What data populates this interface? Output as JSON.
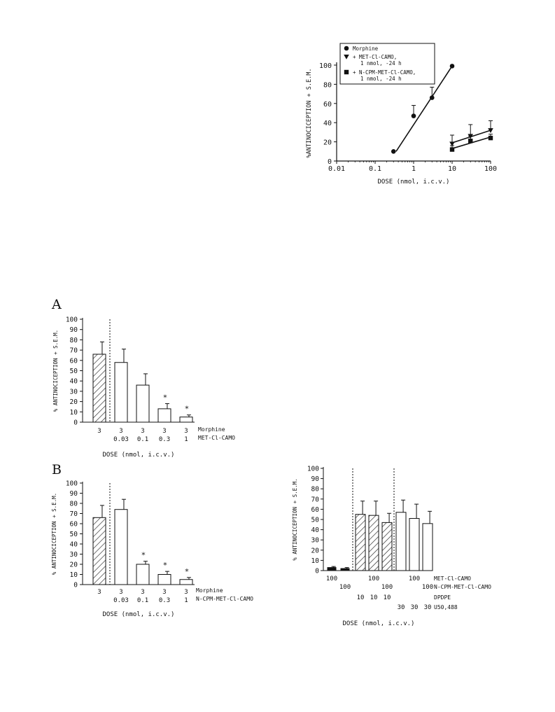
{
  "chart_data": [
    {
      "id": "dose-response",
      "type": "scatter",
      "xscale": "log",
      "xlim": [
        0.01,
        100
      ],
      "ylim": [
        0,
        100
      ],
      "xlabel": "DOSE (nmol, i.c.v.)",
      "ylabel": "%ANTINOCICEPTION + S.E.M.",
      "xticks": [
        "0.01",
        "0.1",
        "1",
        "10",
        "100"
      ],
      "yticks": [
        "0",
        "20",
        "40",
        "60",
        "80",
        "100"
      ],
      "legend_position": "top",
      "legend": [
        {
          "marker": "circle",
          "text": "Morphine"
        },
        {
          "marker": "triangle-down",
          "text": "+ MET-Cl-CAMO,",
          "text2": "1 nmol, -24 h"
        },
        {
          "marker": "square",
          "text": "+ N-CPM-MET-Cl-CAMO,",
          "text2": "1 nmol, -24 h"
        }
      ],
      "series": [
        {
          "marker": "circle",
          "line": [
            [
              0.35,
              10
            ],
            [
              10,
              99
            ]
          ],
          "points": [
            {
              "x": 0.3,
              "y": 10,
              "err": 0
            },
            {
              "x": 1,
              "y": 47,
              "err": 11
            },
            {
              "x": 3,
              "y": 66,
              "err": 11
            },
            {
              "x": 10,
              "y": 99,
              "err": 0
            }
          ]
        },
        {
          "marker": "triangle-down",
          "line": [
            [
              10,
              19
            ],
            [
              100,
              32
            ]
          ],
          "points": [
            {
              "x": 10,
              "y": 18,
              "err": 9
            },
            {
              "x": 30,
              "y": 26,
              "err": 12
            },
            {
              "x": 100,
              "y": 32,
              "err": 10
            }
          ]
        },
        {
          "marker": "square",
          "line": [
            [
              10,
              13
            ],
            [
              100,
              25
            ]
          ],
          "points": [
            {
              "x": 10,
              "y": 12,
              "err": 4
            },
            {
              "x": 30,
              "y": 21,
              "err": 5
            },
            {
              "x": 100,
              "y": 24,
              "err": 4
            }
          ]
        }
      ]
    },
    {
      "id": "panel-a",
      "type": "bar",
      "panel_label": "A",
      "ylim": [
        0,
        100
      ],
      "yticks": [
        "0",
        "10",
        "20",
        "30",
        "40",
        "50",
        "60",
        "70",
        "80",
        "90",
        "100"
      ],
      "ylabel": "% ANTINOCICEPTION + S.E.M.",
      "xlabel": "DOSE (nmol, i.c.v.)",
      "row_labels": [
        "Morphine",
        "MET-Cl-CAMO"
      ],
      "bars": [
        {
          "value": 66,
          "err": 12,
          "fill": "hatched",
          "labels": [
            "3",
            ""
          ],
          "star": false
        },
        {
          "value": 58,
          "err": 13,
          "fill": "open",
          "labels": [
            "3",
            "0.03"
          ],
          "star": false
        },
        {
          "value": 36,
          "err": 11,
          "fill": "open",
          "labels": [
            "3",
            "0.1"
          ],
          "star": false
        },
        {
          "value": 13,
          "err": 5,
          "fill": "open",
          "labels": [
            "3",
            "0.3"
          ],
          "star": true
        },
        {
          "value": 5,
          "err": 2,
          "fill": "open",
          "labels": [
            "3",
            "1"
          ],
          "star": true
        }
      ],
      "separator_after": 1
    },
    {
      "id": "panel-b",
      "type": "bar",
      "panel_label": "B",
      "ylim": [
        0,
        100
      ],
      "yticks": [
        "0",
        "10",
        "20",
        "30",
        "40",
        "50",
        "60",
        "70",
        "80",
        "90",
        "100"
      ],
      "ylabel": "% ANTINOCICEPTION + S.E.M.",
      "xlabel": "DOSE (nmol, i.c.v.)",
      "row_labels": [
        "Morphine",
        "N-CPM-MET-Cl-CAMO"
      ],
      "bars": [
        {
          "value": 66,
          "err": 12,
          "fill": "hatched",
          "labels": [
            "3",
            ""
          ],
          "star": false
        },
        {
          "value": 74,
          "err": 10,
          "fill": "open",
          "labels": [
            "3",
            "0.03"
          ],
          "star": false
        },
        {
          "value": 20,
          "err": 3,
          "fill": "open",
          "labels": [
            "3",
            "0.1"
          ],
          "star": true
        },
        {
          "value": 10,
          "err": 3,
          "fill": "open",
          "labels": [
            "3",
            "0.3"
          ],
          "star": true
        },
        {
          "value": 5,
          "err": 2,
          "fill": "open",
          "labels": [
            "3",
            "1"
          ],
          "star": true
        }
      ],
      "separator_after": 1
    },
    {
      "id": "panel-c",
      "type": "bar",
      "ylim": [
        0,
        100
      ],
      "yticks": [
        "0",
        "10",
        "20",
        "30",
        "40",
        "50",
        "60",
        "70",
        "80",
        "90",
        "100"
      ],
      "ylabel": "% ANTINOCICEPTION + S.E.M.",
      "xlabel": "DOSE (nmol, i.c.v.)",
      "row_labels": [
        "MET-Cl-CAMO",
        "N-CPM-MET-Cl-CAMO",
        "DPDPE",
        "U50,488"
      ],
      "bars": [
        {
          "value": 3,
          "err": 1,
          "fill": "solid",
          "labels": [
            "100",
            "",
            "",
            ""
          ]
        },
        {
          "value": 2,
          "err": 1,
          "fill": "solid",
          "labels": [
            "",
            "100",
            "",
            ""
          ]
        },
        {
          "value": 55,
          "err": 13,
          "fill": "hatched",
          "labels": [
            "",
            "",
            "10",
            ""
          ]
        },
        {
          "value": 54,
          "err": 14,
          "fill": "hatched",
          "labels": [
            "100",
            "",
            "10",
            ""
          ]
        },
        {
          "value": 47,
          "err": 9,
          "fill": "hatched",
          "labels": [
            "",
            "100",
            "10",
            ""
          ]
        },
        {
          "value": 57,
          "err": 12,
          "fill": "open",
          "labels": [
            "",
            "",
            "",
            "30"
          ]
        },
        {
          "value": 51,
          "err": 14,
          "fill": "open",
          "labels": [
            "100",
            "",
            "",
            "30"
          ]
        },
        {
          "value": 46,
          "err": 12,
          "fill": "open",
          "labels": [
            "",
            "100",
            "",
            "30"
          ]
        }
      ],
      "separators_after": [
        2,
        5
      ]
    }
  ]
}
